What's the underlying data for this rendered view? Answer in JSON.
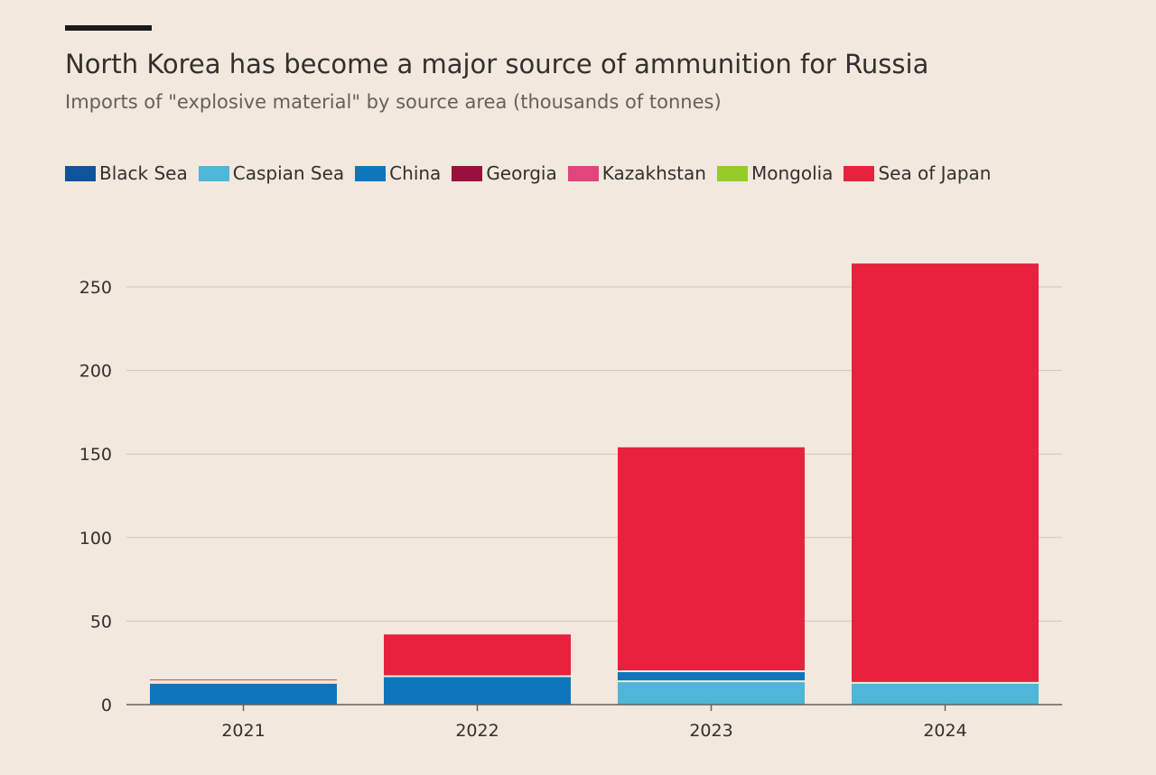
{
  "header": {
    "title": "North Korea has become a major source of ammunition for Russia",
    "subtitle": "Imports of \"explosive material\" by source area (thousands of tonnes)"
  },
  "colors": {
    "background": "#f2e8dd",
    "gridline": "#cfc5bc",
    "axis": "#66605c"
  },
  "chart_data": {
    "type": "bar",
    "stacked": true,
    "title": "North Korea has become a major source of ammunition for Russia",
    "subtitle": "Imports of \"explosive material\" by source area (thousands of tonnes)",
    "xlabel": "",
    "ylabel": "",
    "categories": [
      "2021",
      "2022",
      "2023",
      "2024"
    ],
    "ylim": [
      0,
      250
    ],
    "yticks": [
      0,
      50,
      100,
      150,
      200,
      250
    ],
    "grid": true,
    "legend_position": "top",
    "series": [
      {
        "name": "Black Sea",
        "color": "#0f5499",
        "values": [
          0,
          0,
          0,
          0
        ]
      },
      {
        "name": "Caspian Sea",
        "color": "#4eb6d6",
        "values": [
          0,
          0,
          14,
          13
        ]
      },
      {
        "name": "China",
        "color": "#0d76bd",
        "values": [
          13,
          17,
          6,
          0
        ]
      },
      {
        "name": "Georgia",
        "color": "#990f3d",
        "values": [
          1,
          0,
          0,
          0
        ]
      },
      {
        "name": "Kazakhstan",
        "color": "#e0457b",
        "values": [
          0,
          0,
          0,
          0
        ]
      },
      {
        "name": "Mongolia",
        "color": "#96cc28",
        "values": [
          0,
          0,
          0,
          0
        ]
      },
      {
        "name": "Sea of Japan",
        "color": "#e8223e",
        "values": [
          1,
          25,
          134,
          251
        ]
      }
    ]
  }
}
